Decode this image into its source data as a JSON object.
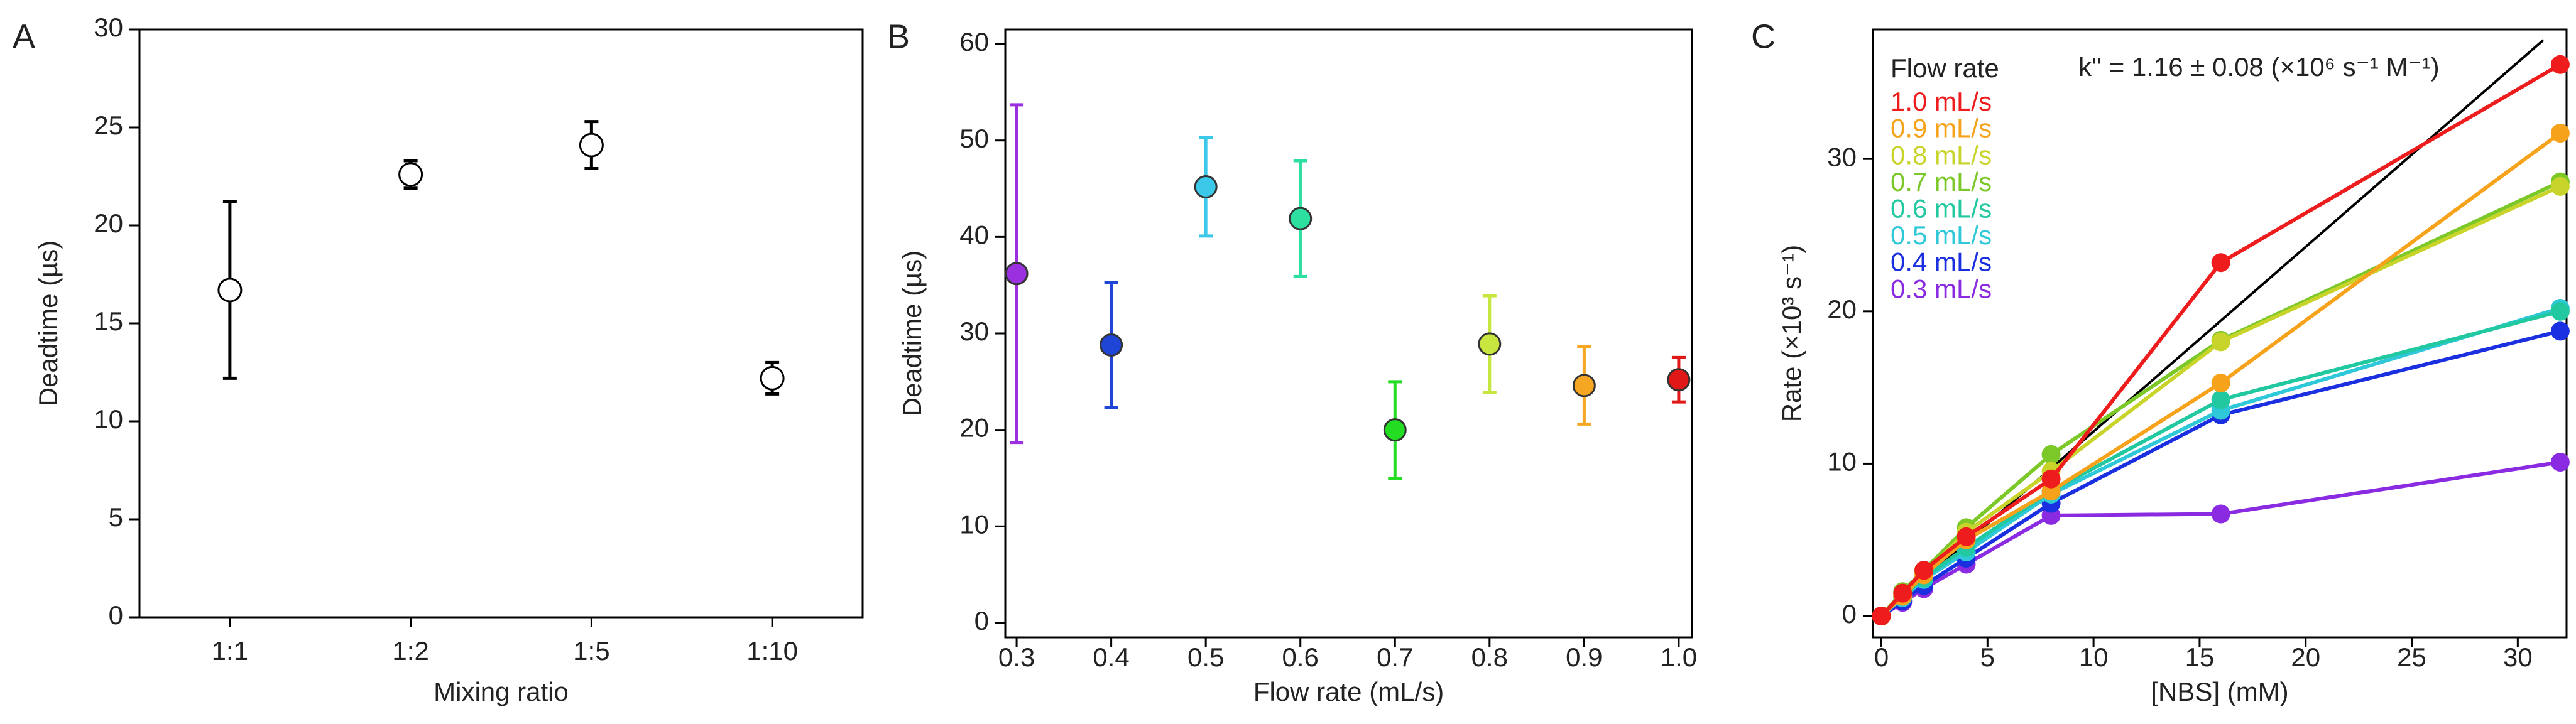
{
  "chart_data": [
    {
      "type": "errorbar",
      "panel": "A",
      "categories": [
        "1:1",
        "1:2",
        "1:5",
        "1:10"
      ],
      "values": [
        16.7,
        22.6,
        24.1,
        12.2
      ],
      "errors": [
        4.5,
        0.7,
        1.2,
        0.8
      ],
      "color": "#000000",
      "marker_fill": "#ffffff",
      "xlabel": "Mixing ratio",
      "ylabel": "Deadtime (µs)",
      "ylim": [
        0,
        30
      ],
      "yticks": [
        0,
        5,
        10,
        15,
        20,
        25,
        30
      ]
    },
    {
      "type": "errorbar",
      "panel": "B",
      "x": [
        0.3,
        0.4,
        0.5,
        0.6,
        0.7,
        0.8,
        0.9,
        1.0
      ],
      "values": [
        36.2,
        28.8,
        45.2,
        41.9,
        20.0,
        28.9,
        24.6,
        25.2
      ],
      "errors": [
        17.5,
        6.5,
        5.1,
        6.0,
        5.0,
        5.0,
        4.0,
        2.3
      ],
      "colors": [
        "#9b30e0",
        "#1f45d6",
        "#3cc8e8",
        "#2ee0a0",
        "#22dd22",
        "#c8e640",
        "#f5a623",
        "#e01818"
      ],
      "xlabel": "Flow rate (mL/s)",
      "ylabel": "Deadtime (µs)",
      "xlim": [
        0.288,
        1.014
      ],
      "xticks": [
        0.3,
        0.4,
        0.5,
        0.6,
        0.7,
        0.8,
        0.9,
        {
          "value": 1.0,
          "label": "1.0"
        }
      ],
      "ylim": [
        -1.5,
        61.5
      ],
      "yticks": [
        0,
        10,
        20,
        30,
        40,
        50,
        60
      ]
    },
    {
      "type": "line",
      "panel": "C",
      "x": [
        0,
        1,
        2,
        4,
        8,
        16,
        32
      ],
      "series": [
        {
          "name": "1.0 mL/s",
          "color": "#ee1c1c",
          "values": [
            0,
            1.5,
            3.0,
            5.2,
            9.0,
            23.2,
            36.2
          ]
        },
        {
          "name": "0.9 mL/s",
          "color": "#f7a21b",
          "values": [
            0,
            1.3,
            2.7,
            5.0,
            8.2,
            15.3,
            31.7
          ]
        },
        {
          "name": "0.8 mL/s",
          "color": "#c8d42a",
          "values": [
            0,
            1.4,
            2.8,
            5.5,
            9.5,
            18.0,
            28.2
          ]
        },
        {
          "name": "0.7 mL/s",
          "color": "#7cc828",
          "values": [
            0,
            1.6,
            3.0,
            5.8,
            10.6,
            18.1,
            28.5
          ]
        },
        {
          "name": "0.6 mL/s",
          "color": "#22c8a0",
          "values": [
            0,
            1.3,
            2.5,
            4.5,
            8.2,
            14.2,
            20.0
          ]
        },
        {
          "name": "0.5 mL/s",
          "color": "#2ec8d8",
          "values": [
            0,
            1.2,
            2.4,
            4.2,
            8.0,
            13.5,
            20.2
          ]
        },
        {
          "name": "0.4 mL/s",
          "color": "#1a2fe0",
          "values": [
            0,
            1.0,
            2.0,
            3.8,
            7.4,
            13.2,
            18.7
          ]
        },
        {
          "name": "0.3 mL/s",
          "color": "#8a2be2",
          "values": [
            0,
            0.9,
            1.8,
            3.4,
            6.6,
            6.7,
            10.1
          ]
        }
      ],
      "fit": {
        "x": [
          0,
          31.2
        ],
        "values": [
          0,
          37.8
        ],
        "color": "#000000"
      },
      "legend_title": "Flow rate",
      "annotation": "k'' = 1.16 ± 0.08 (×10⁶ s⁻¹ M⁻¹)",
      "xlabel": "[NBS] (mM)",
      "ylabel": "Rate (×10³ s⁻¹)",
      "xlim": [
        -0.4,
        32.3
      ],
      "xticks": [
        0,
        5,
        10,
        15,
        20,
        25,
        30
      ],
      "ylim": [
        -1.4,
        38.5
      ],
      "yticks": [
        0,
        10,
        20,
        30
      ]
    }
  ]
}
